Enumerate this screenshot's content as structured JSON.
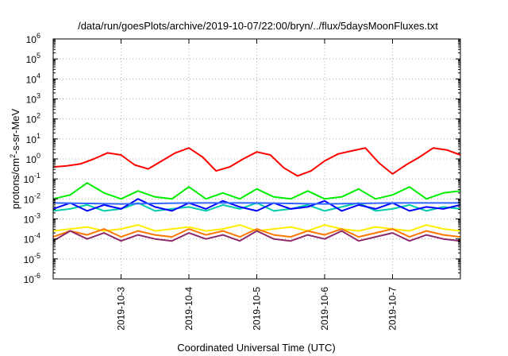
{
  "chart_data": {
    "type": "line",
    "title": "/data/run/goesPlots/archive/2019-10-07/22:00/bryn/../flux/5daysMoonFluxes.txt",
    "xlabel": "Coordinated Universal Time (UTC)",
    "ylabel_parts": [
      "protons/cm",
      "2",
      "-s-sr-MeV"
    ],
    "y_scale": "log",
    "ylim_exp": [
      -6,
      6
    ],
    "y_ticks": [
      {
        "base": "10",
        "exp": "-6"
      },
      {
        "base": "10",
        "exp": "-5"
      },
      {
        "base": "10",
        "exp": "-4"
      },
      {
        "base": "10",
        "exp": "-3"
      },
      {
        "base": "10",
        "exp": "-2"
      },
      {
        "base": "10",
        "exp": "-1"
      },
      {
        "base": "10",
        "exp": "0"
      },
      {
        "base": "10",
        "exp": "1"
      },
      {
        "base": "10",
        "exp": "2"
      },
      {
        "base": "10",
        "exp": "3"
      },
      {
        "base": "10",
        "exp": "4"
      },
      {
        "base": "10",
        "exp": "5"
      },
      {
        "base": "10",
        "exp": "6"
      }
    ],
    "xlim": [
      "2019-10-02 00:00",
      "2019-10-08 00:00"
    ],
    "x_ticks": [
      "2019-10-3",
      "2019-10-4",
      "2019-10-5",
      "2019-10-6",
      "2019-10-7"
    ],
    "grid": true,
    "series": [
      {
        "color": "#ff0000",
        "x_days": [
          0,
          0.2,
          0.4,
          0.6,
          0.8,
          1.0,
          1.2,
          1.4,
          1.6,
          1.8,
          2.0,
          2.2,
          2.4,
          2.6,
          2.8,
          3.0,
          3.2,
          3.4,
          3.6,
          3.8,
          4.0,
          4.2,
          4.4,
          4.6,
          4.8,
          5.0,
          5.2,
          5.4,
          5.6,
          5.8,
          6.0
        ],
        "log10_values": [
          -0.4,
          -0.35,
          -0.25,
          0.0,
          0.3,
          0.2,
          -0.3,
          -0.5,
          -0.1,
          0.3,
          0.55,
          0.1,
          -0.6,
          -0.4,
          0.0,
          0.35,
          0.2,
          -0.45,
          -0.85,
          -0.6,
          -0.1,
          0.25,
          0.4,
          0.55,
          -0.2,
          -0.75,
          -0.3,
          0.1,
          0.55,
          0.45,
          0.2
        ]
      },
      {
        "color": "#00ee00",
        "x_days": [
          0,
          0.25,
          0.5,
          0.75,
          1.0,
          1.25,
          1.5,
          1.75,
          2.0,
          2.25,
          2.5,
          2.75,
          3.0,
          3.25,
          3.5,
          3.75,
          4.0,
          4.25,
          4.5,
          4.75,
          5.0,
          5.25,
          5.5,
          5.75,
          6.0
        ],
        "log10_values": [
          -2.0,
          -1.8,
          -1.2,
          -1.7,
          -2.0,
          -1.6,
          -1.9,
          -2.0,
          -1.4,
          -2.0,
          -1.7,
          -2.0,
          -1.5,
          -1.9,
          -2.0,
          -1.6,
          -2.0,
          -1.9,
          -1.5,
          -2.0,
          -1.8,
          -1.4,
          -2.0,
          -1.7,
          -1.6
        ]
      },
      {
        "color": "#00ccaa",
        "x_days": [
          0,
          0.25,
          0.5,
          0.75,
          1.0,
          1.25,
          1.5,
          1.75,
          2.0,
          2.25,
          2.5,
          2.75,
          3.0,
          3.25,
          3.5,
          3.75,
          4.0,
          4.25,
          4.5,
          4.75,
          5.0,
          5.25,
          5.5,
          5.75,
          6.0
        ],
        "log10_values": [
          -2.6,
          -2.5,
          -2.3,
          -2.6,
          -2.5,
          -2.2,
          -2.6,
          -2.5,
          -2.4,
          -2.6,
          -2.3,
          -2.5,
          -2.2,
          -2.6,
          -2.5,
          -2.3,
          -2.6,
          -2.4,
          -2.2,
          -2.6,
          -2.5,
          -2.3,
          -2.6,
          -2.4,
          -2.5
        ]
      },
      {
        "color": "#0000ff",
        "x_days": [
          0,
          0.25,
          0.5,
          0.75,
          1.0,
          1.25,
          1.5,
          1.75,
          2.0,
          2.25,
          2.5,
          2.75,
          3.0,
          3.25,
          3.5,
          3.75,
          4.0,
          4.25,
          4.5,
          4.75,
          5.0,
          5.25,
          5.5,
          5.75,
          6.0
        ],
        "log10_values": [
          -2.5,
          -2.2,
          -2.6,
          -2.3,
          -2.5,
          -2.0,
          -2.4,
          -2.6,
          -2.2,
          -2.5,
          -2.1,
          -2.4,
          -2.6,
          -2.2,
          -2.5,
          -2.4,
          -2.1,
          -2.6,
          -2.3,
          -2.5,
          -2.2,
          -2.6,
          -2.4,
          -2.5,
          -2.3
        ]
      },
      {
        "color": "#3366ff",
        "x_days": [
          0,
          1.0,
          2.0,
          3.0,
          4.0,
          5.0,
          6.0
        ],
        "log10_values": [
          -2.2,
          -2.25,
          -2.2,
          -2.2,
          -2.25,
          -2.2,
          -2.2
        ]
      },
      {
        "color": "#ffee00",
        "x_days": [
          0,
          0.25,
          0.5,
          0.75,
          1.0,
          1.25,
          1.5,
          1.75,
          2.0,
          2.25,
          2.5,
          2.75,
          3.0,
          3.25,
          3.5,
          3.75,
          4.0,
          4.25,
          4.5,
          4.75,
          5.0,
          5.25,
          5.5,
          5.75,
          6.0
        ],
        "log10_values": [
          -3.6,
          -3.5,
          -3.4,
          -3.6,
          -3.5,
          -3.3,
          -3.6,
          -3.5,
          -3.4,
          -3.6,
          -3.5,
          -3.3,
          -3.6,
          -3.5,
          -3.4,
          -3.6,
          -3.3,
          -3.5,
          -3.6,
          -3.4,
          -3.5,
          -3.6,
          -3.3,
          -3.5,
          -3.6
        ]
      },
      {
        "color": "#ff7700",
        "x_days": [
          0,
          0.25,
          0.5,
          0.75,
          1.0,
          1.25,
          1.5,
          1.75,
          2.0,
          2.25,
          2.5,
          2.75,
          3.0,
          3.25,
          3.5,
          3.75,
          4.0,
          4.25,
          4.5,
          4.75,
          5.0,
          5.25,
          5.5,
          5.75,
          6.0
        ],
        "log10_values": [
          -3.9,
          -3.6,
          -3.8,
          -3.5,
          -3.9,
          -3.6,
          -3.8,
          -3.9,
          -3.5,
          -3.8,
          -3.6,
          -3.9,
          -3.5,
          -3.8,
          -3.9,
          -3.6,
          -3.8,
          -3.5,
          -3.9,
          -3.7,
          -3.5,
          -3.9,
          -3.6,
          -3.8,
          -3.9
        ]
      },
      {
        "color": "#8b2a6a",
        "x_days": [
          0,
          0.25,
          0.5,
          0.75,
          1.0,
          1.25,
          1.5,
          1.75,
          2.0,
          2.25,
          2.5,
          2.75,
          3.0,
          3.25,
          3.5,
          3.75,
          4.0,
          4.25,
          4.5,
          4.75,
          5.0,
          5.25,
          5.5,
          5.75,
          6.0
        ],
        "log10_values": [
          -4.1,
          -3.6,
          -4.0,
          -3.7,
          -4.1,
          -3.8,
          -4.0,
          -4.1,
          -3.7,
          -4.0,
          -3.8,
          -4.1,
          -3.6,
          -4.0,
          -4.1,
          -3.8,
          -4.0,
          -3.6,
          -4.1,
          -3.9,
          -3.7,
          -4.1,
          -3.8,
          -4.0,
          -4.1
        ]
      }
    ]
  }
}
